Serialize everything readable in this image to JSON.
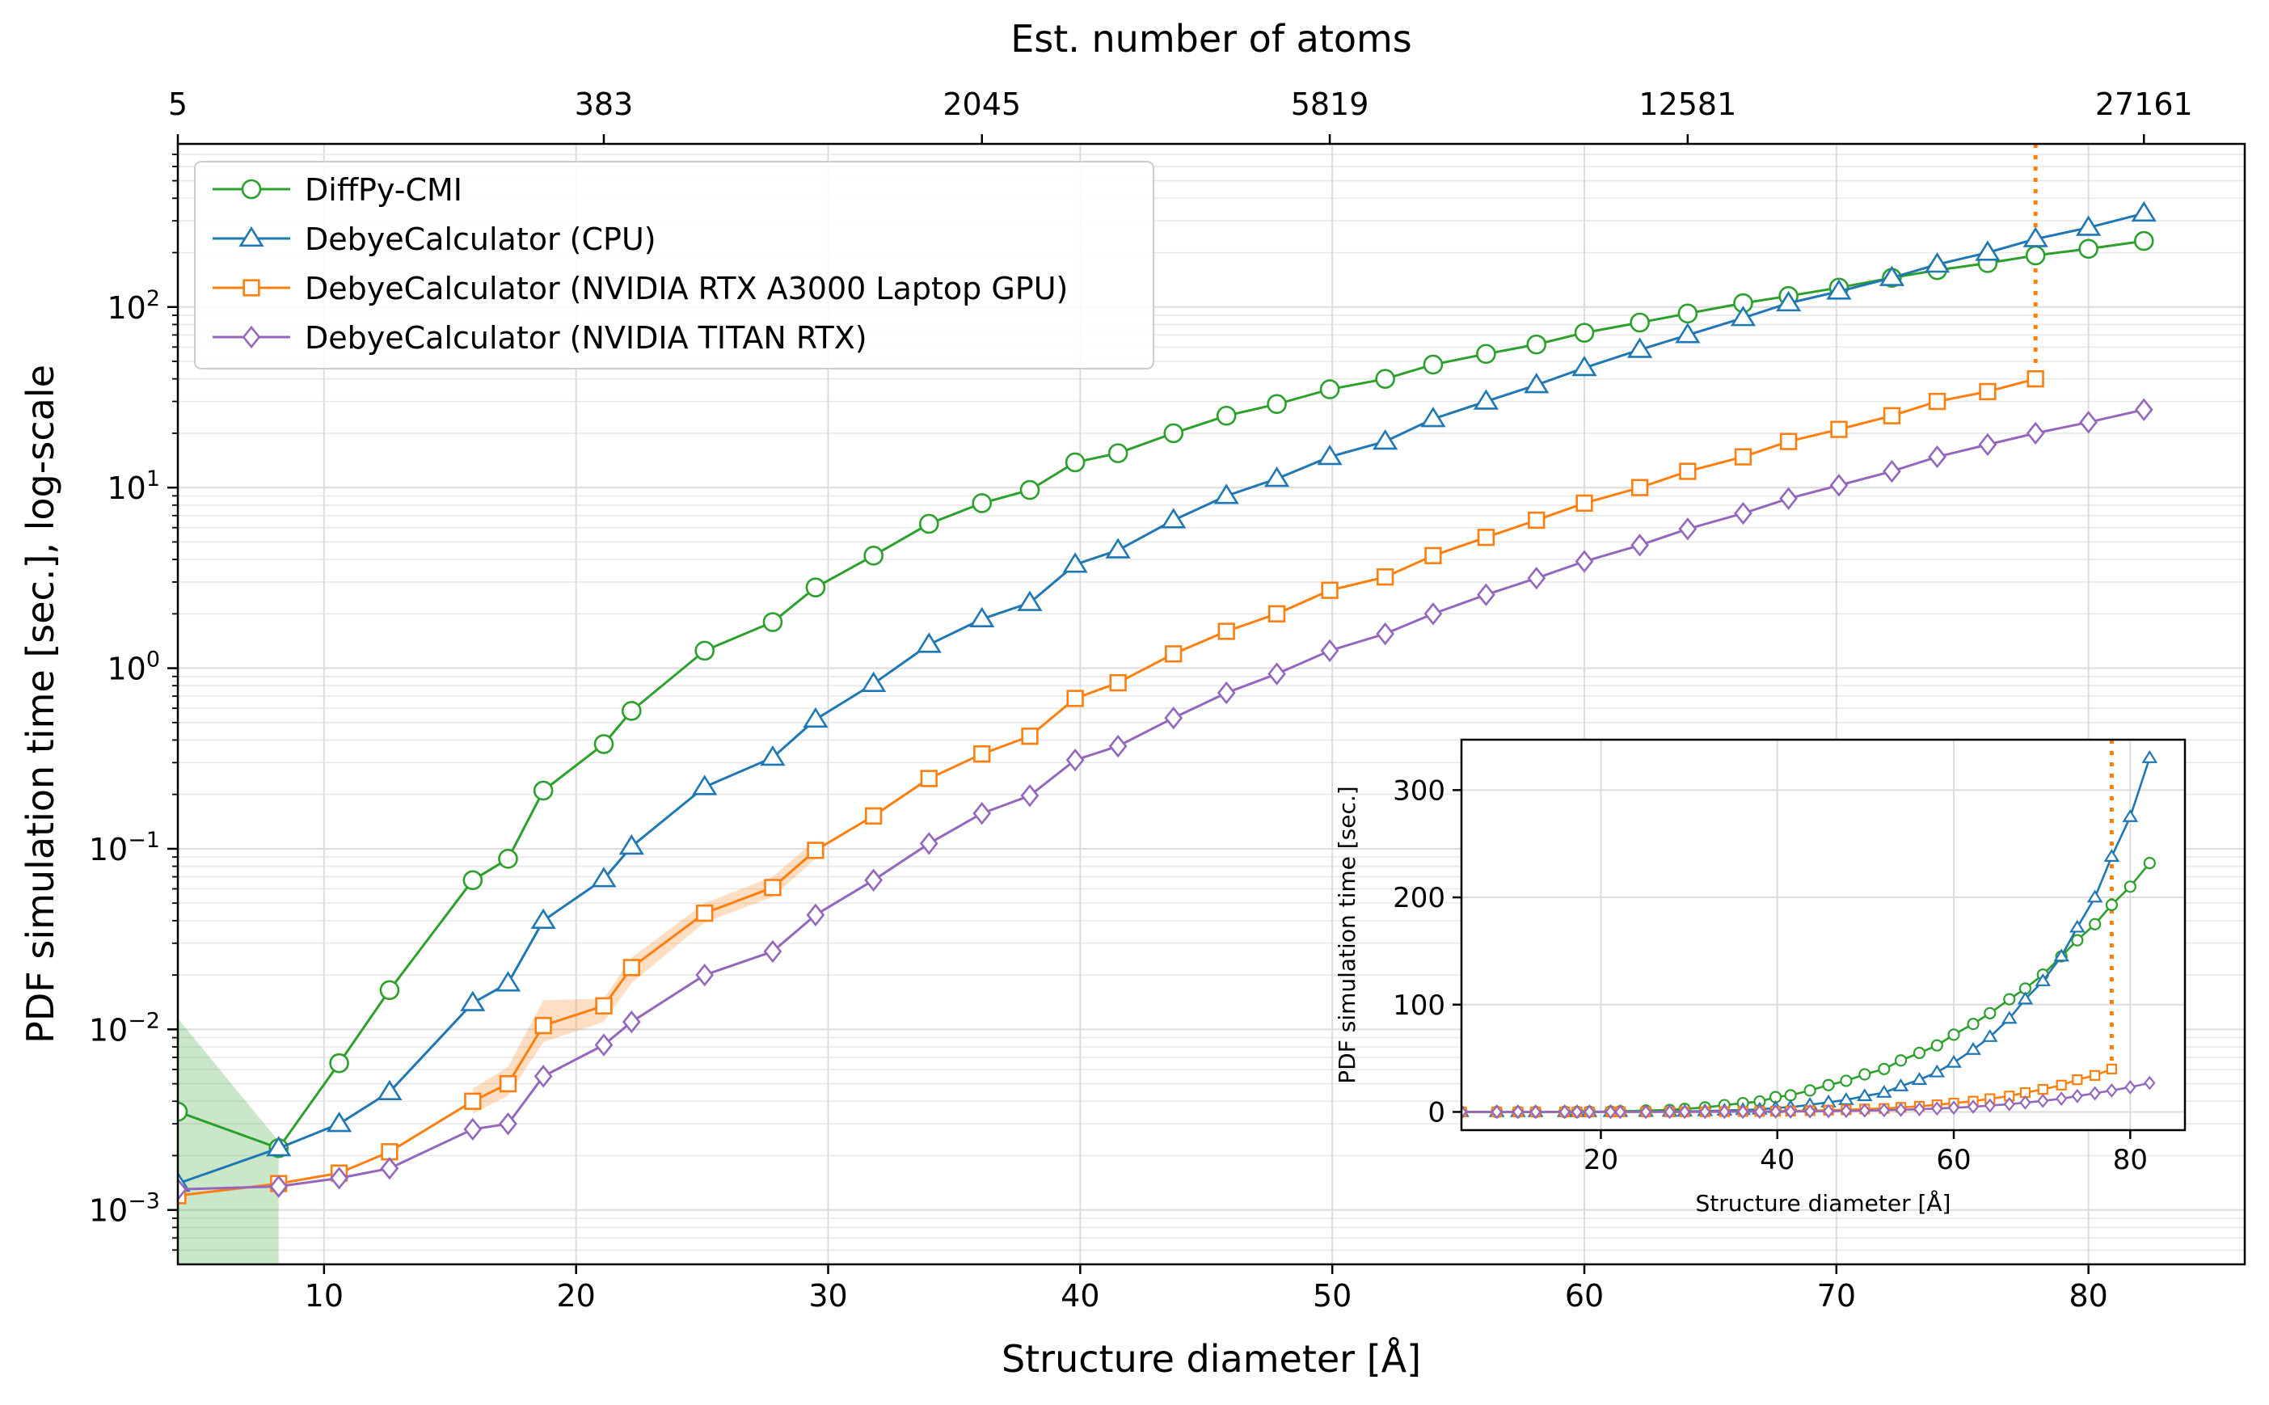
{
  "chart_data": [
    {
      "type": "line",
      "xlabel": "Structure diameter [Å]",
      "ylabel": "PDF simulation time [sec.], log-scale",
      "top_xlabel": "Est. number of atoms",
      "y_scale": "log",
      "xlim": [
        4.2,
        86.2
      ],
      "ylim": [
        0.0005,
        800
      ],
      "grid": true,
      "legend_position": "top-left",
      "x_ticks": [
        10,
        20,
        30,
        40,
        50,
        60,
        70,
        80
      ],
      "x_tick_labels": [
        "10",
        "20",
        "30",
        "40",
        "50",
        "60",
        "70",
        "80"
      ],
      "y_ticks": [
        0.001,
        0.01,
        0.1,
        1,
        10,
        100
      ],
      "y_tick_labels": [
        {
          "base": "10",
          "exp": "−3"
        },
        {
          "base": "10",
          "exp": "−2"
        },
        {
          "base": "10",
          "exp": "−1"
        },
        {
          "base": "10",
          "exp": "0"
        },
        {
          "base": "10",
          "exp": "1"
        },
        {
          "base": "10",
          "exp": "2"
        }
      ],
      "top_ticks": [
        {
          "x": 4.2,
          "label": "5"
        },
        {
          "x": 21.1,
          "label": "383"
        },
        {
          "x": 36.1,
          "label": "2045"
        },
        {
          "x": 49.9,
          "label": "5819"
        },
        {
          "x": 64.1,
          "label": "12581"
        },
        {
          "x": 82.2,
          "label": "27161"
        }
      ],
      "gpu_limit_x": 77.9,
      "series": [
        {
          "name": "DiffPy-CMI",
          "color": "#2ca02c",
          "marker": "circle",
          "x": [
            4.2,
            8.2,
            10.6,
            12.6,
            15.9,
            17.3,
            18.7,
            21.1,
            22.2,
            25.1,
            27.8,
            29.5,
            31.8,
            34.0,
            36.1,
            38.0,
            39.8,
            41.5,
            43.7,
            45.8,
            47.8,
            49.9,
            52.1,
            54.0,
            56.1,
            58.1,
            60.0,
            62.2,
            64.1,
            66.3,
            68.1,
            70.1,
            72.2,
            74.0,
            76.0,
            77.9,
            80.0,
            82.2
          ],
          "y": [
            0.0035,
            0.0022,
            0.0065,
            0.0165,
            0.067,
            0.088,
            0.21,
            0.38,
            0.58,
            1.25,
            1.8,
            2.8,
            4.2,
            6.3,
            8.2,
            9.7,
            13.8,
            15.5,
            20.0,
            25.0,
            29.0,
            35.0,
            40.0,
            48.0,
            55.0,
            62.0,
            72.0,
            82.0,
            92.0,
            105.0,
            115.0,
            128.0,
            145.0,
            160.0,
            175.0,
            193.0,
            210.0,
            232.0
          ],
          "band": {
            "x": [
              4.2,
              8.2
            ],
            "lower": [
              0.0005,
              0.0005
            ],
            "upper": [
              0.0115,
              0.0024
            ]
          }
        },
        {
          "name": "DebyeCalculator (CPU)",
          "color": "#1f77b4",
          "marker": "triangle",
          "x": [
            4.2,
            8.2,
            10.6,
            12.6,
            15.9,
            17.3,
            18.7,
            21.1,
            22.2,
            25.1,
            27.8,
            29.5,
            31.8,
            34.0,
            36.1,
            38.0,
            39.8,
            41.5,
            43.7,
            45.8,
            47.8,
            49.9,
            52.1,
            54.0,
            56.1,
            58.1,
            60.0,
            62.2,
            64.1,
            66.3,
            68.1,
            70.1,
            72.2,
            74.0,
            76.0,
            77.9,
            80.0,
            82.2
          ],
          "y": [
            0.0014,
            0.0022,
            0.003,
            0.0045,
            0.014,
            0.018,
            0.04,
            0.068,
            0.103,
            0.22,
            0.32,
            0.52,
            0.82,
            1.35,
            1.87,
            2.3,
            3.75,
            4.5,
            6.6,
            9.0,
            11.2,
            14.8,
            18.0,
            24.0,
            30.0,
            37.0,
            46.0,
            58.0,
            70.0,
            87.0,
            105.0,
            122.0,
            145.0,
            172.0,
            200.0,
            238.0,
            275.0,
            330.0
          ]
        },
        {
          "name": "DebyeCalculator (NVIDIA RTX A3000 Laptop GPU)",
          "color": "#ff7f0e",
          "marker": "square",
          "x": [
            4.2,
            8.2,
            10.6,
            12.6,
            15.9,
            17.3,
            18.7,
            21.1,
            22.2,
            25.1,
            27.8,
            29.5,
            31.8,
            34.0,
            36.1,
            38.0,
            39.8,
            41.5,
            43.7,
            45.8,
            47.8,
            49.9,
            52.1,
            54.0,
            56.1,
            58.1,
            60.0,
            62.2,
            64.1,
            66.3,
            68.1,
            70.1,
            72.2,
            74.0,
            76.0,
            77.9
          ],
          "y": [
            0.0012,
            0.0014,
            0.0016,
            0.0021,
            0.004,
            0.005,
            0.0105,
            0.0135,
            0.022,
            0.044,
            0.061,
            0.098,
            0.152,
            0.245,
            0.335,
            0.42,
            0.68,
            0.83,
            1.2,
            1.6,
            2.0,
            2.7,
            3.2,
            4.2,
            5.3,
            6.6,
            8.2,
            10.0,
            12.3,
            14.8,
            18.0,
            21.0,
            25.0,
            30.0,
            34.0,
            40.0
          ],
          "band": {
            "x": [
              15.9,
              17.3,
              18.7,
              21.1,
              22.2,
              25.1,
              27.8,
              29.5
            ],
            "lower": [
              0.0034,
              0.0043,
              0.0085,
              0.011,
              0.018,
              0.039,
              0.054,
              0.088
            ],
            "upper": [
              0.0047,
              0.0062,
              0.0145,
              0.0148,
              0.025,
              0.05,
              0.07,
              0.112
            ]
          }
        },
        {
          "name": "DebyeCalculator (NVIDIA TITAN RTX)",
          "color": "#9467bd",
          "marker": "diamond",
          "x": [
            4.2,
            8.2,
            10.6,
            12.6,
            15.9,
            17.3,
            18.7,
            21.1,
            22.2,
            25.1,
            27.8,
            29.5,
            31.8,
            34.0,
            36.1,
            38.0,
            39.8,
            41.5,
            43.7,
            45.8,
            47.8,
            49.9,
            52.1,
            54.0,
            56.1,
            58.1,
            60.0,
            62.2,
            64.1,
            66.3,
            68.1,
            70.1,
            72.2,
            74.0,
            76.0,
            77.9,
            80.0,
            82.2
          ],
          "y": [
            0.0013,
            0.00135,
            0.0015,
            0.0017,
            0.0028,
            0.003,
            0.0055,
            0.0082,
            0.011,
            0.02,
            0.027,
            0.043,
            0.067,
            0.107,
            0.157,
            0.197,
            0.31,
            0.37,
            0.53,
            0.73,
            0.93,
            1.25,
            1.55,
            2.0,
            2.55,
            3.15,
            3.9,
            4.8,
            5.9,
            7.2,
            8.7,
            10.3,
            12.3,
            14.8,
            17.3,
            20.0,
            23.0,
            27.0
          ]
        }
      ]
    },
    {
      "type": "line",
      "xlabel": "Structure diameter [Å]",
      "ylabel": "PDF simulation time [sec.]",
      "xlim": [
        4.2,
        86.2
      ],
      "ylim": [
        -17,
        347
      ],
      "grid": true,
      "x_ticks": [
        20,
        40,
        60,
        80
      ],
      "x_tick_labels": [
        "20",
        "40",
        "60",
        "80"
      ],
      "y_ticks": [
        0,
        100,
        200,
        300
      ],
      "y_tick_labels": [
        "0",
        "100",
        "200",
        "300"
      ],
      "note": "inset: same series plotted on a linear scale"
    }
  ]
}
